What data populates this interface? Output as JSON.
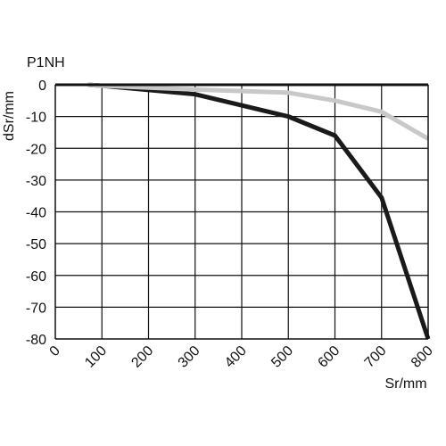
{
  "chart_data": {
    "type": "line",
    "title": "P1NH",
    "xlabel": "Sr/mm",
    "ylabel": "dSr/mm",
    "xlim": [
      0,
      800
    ],
    "ylim": [
      -80,
      0
    ],
    "x_ticks": [
      "0",
      "100",
      "200",
      "300",
      "400",
      "500",
      "600",
      "700",
      "800"
    ],
    "y_ticks": [
      "0",
      "-10",
      "-20",
      "-30",
      "-40",
      "-50",
      "-60",
      "-70",
      "-80"
    ],
    "grid": true,
    "series": [
      {
        "color": "#1a1a1a",
        "points": [
          [
            70,
            0
          ],
          [
            100,
            -0.3
          ],
          [
            300,
            -3
          ],
          [
            500,
            -10
          ],
          [
            600,
            -16
          ],
          [
            700,
            -35.5
          ],
          [
            800,
            -80
          ]
        ]
      },
      {
        "color": "#c8c8c8",
        "points": [
          [
            70,
            0
          ],
          [
            100,
            -0.3
          ],
          [
            300,
            -1.5
          ],
          [
            500,
            -2.5
          ],
          [
            600,
            -5
          ],
          [
            700,
            -8.5
          ],
          [
            800,
            -17
          ]
        ]
      }
    ]
  }
}
